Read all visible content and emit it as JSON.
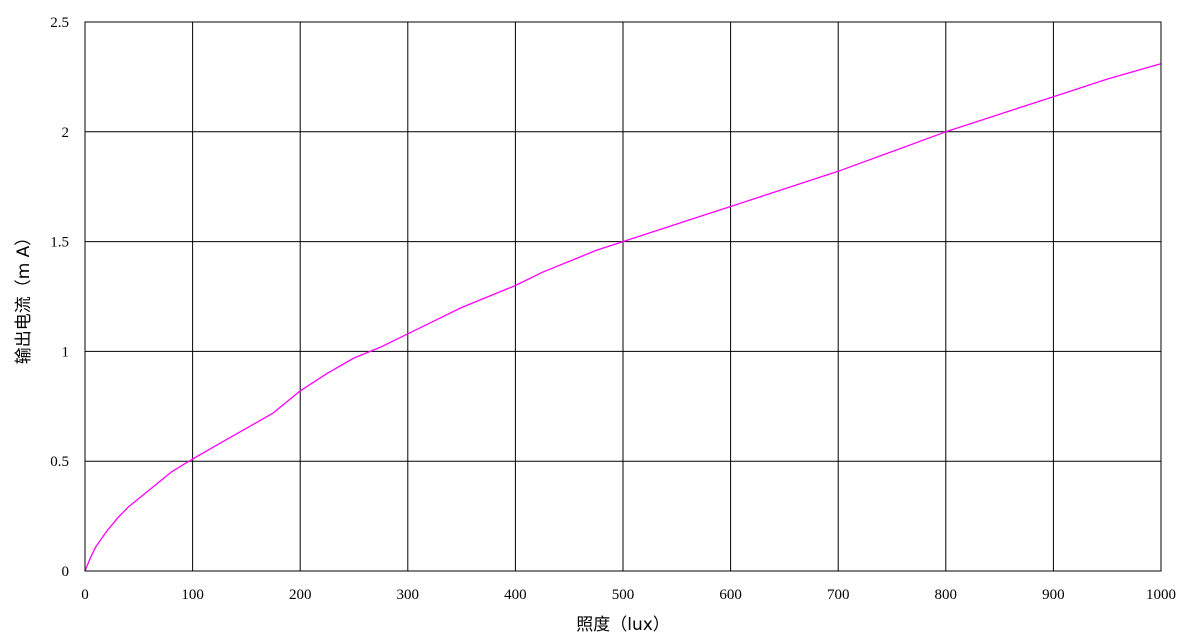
{
  "chart_data": {
    "type": "line",
    "title": "",
    "xlabel": "照度（lux）",
    "ylabel": "输出电流（m A）",
    "xlim": [
      0,
      1000
    ],
    "ylim": [
      0,
      2.5
    ],
    "xticks": [
      0,
      100,
      200,
      300,
      400,
      500,
      600,
      700,
      800,
      900,
      1000
    ],
    "xtick_labels": [
      "0",
      "100",
      "200",
      "300",
      "400",
      "500",
      "600",
      "700",
      "800",
      "900",
      "1000"
    ],
    "yticks": [
      0,
      0.5,
      1,
      1.5,
      2,
      2.5
    ],
    "ytick_labels": [
      "0",
      "0.5",
      "1",
      "1.5",
      "2",
      "2.5"
    ],
    "grid": true,
    "legend": "none",
    "series": [
      {
        "color": "#ff00ff",
        "x": [
          0,
          5,
          10,
          20,
          30,
          40,
          50,
          60,
          70,
          80,
          90,
          100,
          125,
          150,
          175,
          200,
          225,
          250,
          275,
          300,
          325,
          350,
          375,
          400,
          425,
          450,
          475,
          500,
          550,
          600,
          650,
          700,
          750,
          800,
          850,
          900,
          950,
          1000
        ],
        "y": [
          0,
          0.06,
          0.11,
          0.18,
          0.24,
          0.29,
          0.33,
          0.37,
          0.41,
          0.45,
          0.48,
          0.51,
          0.58,
          0.65,
          0.72,
          0.82,
          0.9,
          0.97,
          1.02,
          1.08,
          1.14,
          1.2,
          1.25,
          1.3,
          1.36,
          1.41,
          1.46,
          1.5,
          1.58,
          1.66,
          1.74,
          1.82,
          1.91,
          2.0,
          2.08,
          2.16,
          2.24,
          2.31
        ]
      }
    ]
  }
}
